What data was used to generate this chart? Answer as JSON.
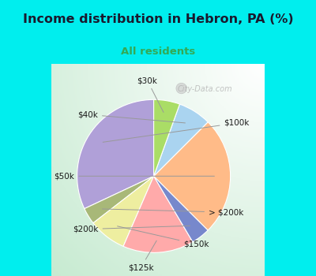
{
  "title": "Income distribution in Hebron, PA (%)",
  "subtitle": "All residents",
  "labels": [
    "$100k",
    "> $200k",
    "$150k",
    "$125k",
    "$200k",
    "$50k",
    "$40k",
    "$30k"
  ],
  "sizes": [
    32.0,
    3.5,
    8.0,
    15.0,
    4.0,
    25.0,
    7.0,
    5.5
  ],
  "colors": [
    "#b0a0d8",
    "#a8b878",
    "#eeeea0",
    "#ffaaaa",
    "#7788cc",
    "#ffbb88",
    "#aad4f0",
    "#aadd66"
  ],
  "title_color": "#1a1a2e",
  "subtitle_color": "#33aa55",
  "bg_outer": "#00eeee",
  "watermark": "City-Data.com",
  "startangle": 90,
  "fig_width": 4.0,
  "fig_height": 3.5
}
